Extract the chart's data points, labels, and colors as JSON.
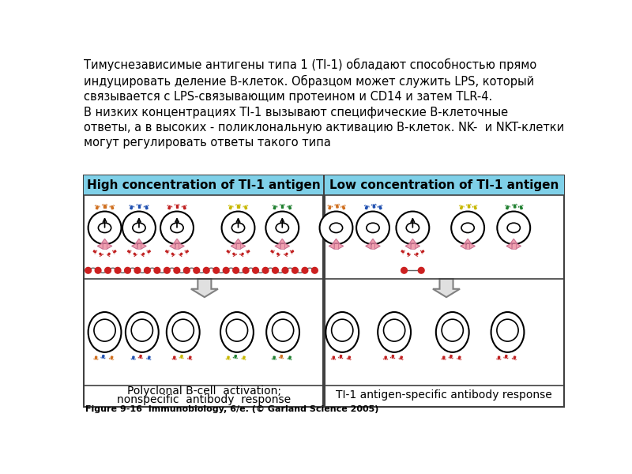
{
  "bg_color": "#ffffff",
  "text_color": "#000000",
  "title_text": "Тимуснезависимые антигены типа 1 (TI-1) обладают способностью прямо\nиндуцировать деление В-клеток. Образцом может служить LPS, который\nсвязывается с LPS-связывающим протеином и CD14 и затем TLR-4.\nВ низких концентрациях TI-1 вызывают специфические В-клеточные\nответы, а в высоких - поликлональную активацию В-клеток. NK-  и NKT-клетки\nмогут регулировать ответы такого типа",
  "title_fontsize": 10.5,
  "header_bg": "#7fd0e8",
  "header_left": "High concentration of TI-1 antigen",
  "header_right": "Low concentration of TI-1 antigen",
  "bottom_left_line1": "Polyclonal B-cell  activation;",
  "bottom_left_line2": "nonspecific  antibody  response",
  "bottom_right": "TI-1 antigen-specific antibody response",
  "caption": "Figure 9-16  Immunobiology, 6/e. (© Garland Science 2005)",
  "colors_high": [
    "#d07020",
    "#2050b0",
    "#c02020",
    "#c8b800",
    "#208030"
  ],
  "colors_low_specific": "#c02020",
  "receptor_color": "#f0a0b0",
  "receptor_edge": "#c87090",
  "lps_color": "#cc2020",
  "lps_connect_color": "#606060",
  "arrow_fill": "#e0e0e0",
  "arrow_edge": "#808080",
  "box_border": "#404040",
  "divider_color": "#606060"
}
